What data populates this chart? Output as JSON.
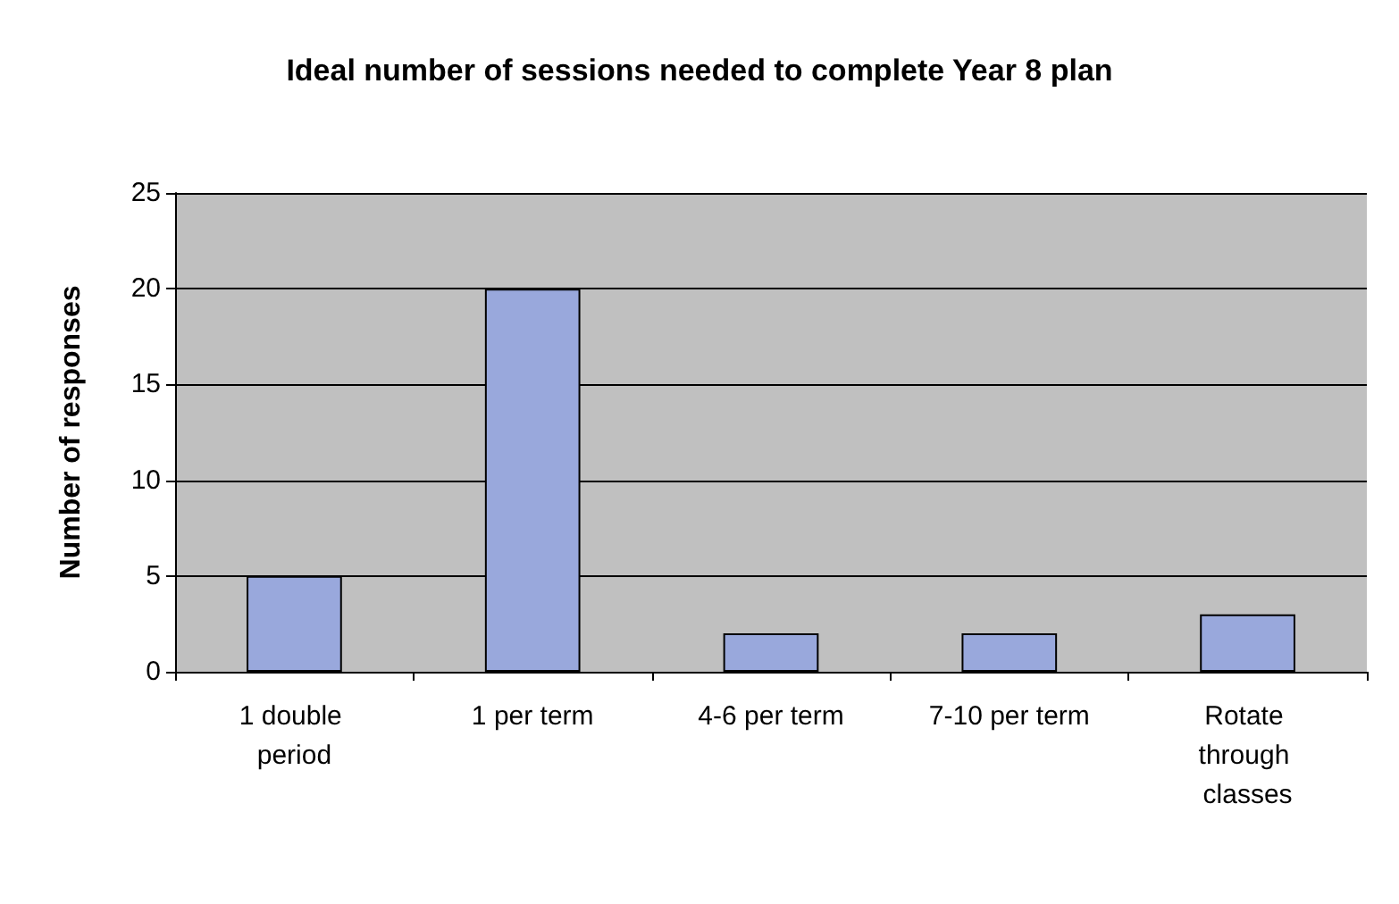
{
  "chart_data": {
    "type": "bar",
    "title": "Ideal number of sessions needed to complete Year 8 plan",
    "ylabel": "Number of responses",
    "categories": [
      "1 double period",
      "1 per term",
      "4-6 per term",
      "7-10 per term",
      "Rotate through classes"
    ],
    "values": [
      5,
      20,
      2,
      2,
      3
    ],
    "color": "#99a8dc",
    "ylim": [
      0,
      25
    ],
    "yticks": [
      0,
      5,
      10,
      15,
      20,
      25
    ],
    "grid": "y"
  }
}
